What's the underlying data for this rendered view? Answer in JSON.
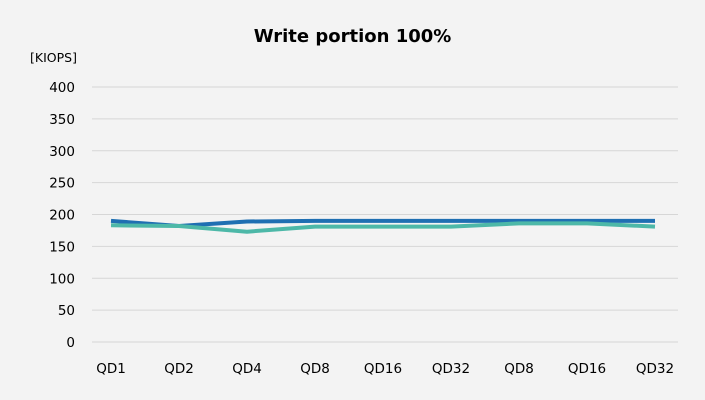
{
  "chart_data": {
    "type": "line",
    "title": "Write portion 100%",
    "ylabel": "[KIOPS]",
    "xlabel": "",
    "categories": [
      "QD1",
      "QD2",
      "QD4",
      "QD8",
      "QD16",
      "QD32",
      "QD8",
      "QD16",
      "QD32"
    ],
    "yticks": [
      0,
      50,
      100,
      150,
      200,
      250,
      300,
      350,
      400
    ],
    "ylim": [
      0,
      400
    ],
    "grid": true,
    "legend": "none",
    "series": [
      {
        "values": [
          190,
          182,
          189,
          190,
          190,
          190,
          190,
          190,
          190
        ],
        "color": "#1f6fb2"
      },
      {
        "values": [
          183,
          182,
          173,
          181,
          181,
          181,
          186,
          186,
          181
        ],
        "color": "#4db8a8"
      }
    ]
  }
}
